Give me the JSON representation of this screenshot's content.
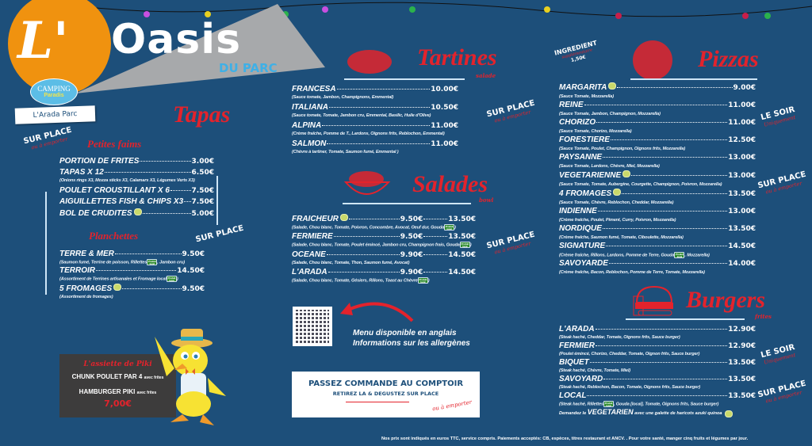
{
  "brand": {
    "name_l": "L'",
    "name": "Oasis",
    "sub": "DU PARC",
    "camping": "CAMPING",
    "paradis": "Paradis",
    "place": "L'Arada Parc"
  },
  "colors": {
    "background": "#1d4f7a",
    "accent_red": "#e3232c",
    "logo_orange": "#f0920f",
    "sail_grey": "#a7a9ab",
    "underline": "#cfe6f7"
  },
  "stamps": {
    "sur_place": "SUR PLACE",
    "emporter": "ou à emporter",
    "le_soir": "LE SOIR",
    "uniquement": "Uniquement"
  },
  "tapas": {
    "title": "Tapas",
    "petites_faims": "Petites faims",
    "items": [
      {
        "name": "PORTION DE FRITES",
        "price": "3.00€"
      },
      {
        "name": "TAPAS X 12",
        "price": "6.50€",
        "desc": "(Onions rings X3, Mozza sticks X3, Calamars X3, Légumes Verts X3)"
      },
      {
        "name": "POULET CROUSTILLANT X 6",
        "price": "7.50€"
      },
      {
        "name": "AIGUILLETTES FISH & CHIPS X3",
        "price": "7.50€"
      },
      {
        "name": "BOL DE CRUDITES",
        "veg": true,
        "price": "5.00€"
      }
    ],
    "planchettes": "Planchettes",
    "planchette_items": [
      {
        "name": "TERRE & MER",
        "price": "9.50€",
        "desc": "(Saumon fumé, Terrine de poisson, Rillettes",
        "local": true,
        "desc_after": ", Jambon cru)"
      },
      {
        "name": "TERROIR",
        "price": "14.50€",
        "desc": "(Assortiment de Terrines artisanales et Fromage local",
        "local": true,
        "desc_after": ")"
      },
      {
        "name": "5 FROMAGES",
        "veg": true,
        "price": "9.50€",
        "desc": "(Assortiment de fromages)"
      }
    ]
  },
  "tartines": {
    "title": "Tartines",
    "subtitle": "salade",
    "items": [
      {
        "name": "FRANCESA",
        "price": "10.00€",
        "desc": "(Sauce tomate, Jambon, Champignons, Emmental)"
      },
      {
        "name": "ITALIANA",
        "price": "10.50€",
        "desc": "(Sauce tomate, Tomate, Jambon cru, Emmental, Basilic, Huile d'Olive)"
      },
      {
        "name": "ALPINA",
        "price": "11.00€",
        "desc": "(Crème fraîche, Pomme de T., Lardons, Oignons frits, Reblochon, Emmental)"
      },
      {
        "name": "SALMON",
        "price": "11.00€",
        "desc": "(Chèvre à tartiner, Tomate, Saumon fumé, Emmental )"
      }
    ]
  },
  "salades": {
    "title": "Salades",
    "subtitle": "bowl",
    "items": [
      {
        "name": "FRAICHEUR",
        "veg": true,
        "price": "9.50€",
        "price2": "13.50€",
        "desc": "(Salade, Chou blanc, Tomate, Poivron, Concombre, Avocat, Oeuf dur, Gouda",
        "local": true,
        "desc_after": ")"
      },
      {
        "name": "FERMIERE",
        "price": "9.50€",
        "price2": "13.50€",
        "desc": "(Salade, Chou blanc, Tomate, Poulet émincé, Jambon cru, Champignon frais, Gouda",
        "local": true,
        "desc_after": ")"
      },
      {
        "name": "OCEANE",
        "price": "9.90€",
        "price2": "14.50€",
        "desc": "(Salade, Chou blanc, Tomate, Thon, Saumon fumé, Avocat)"
      },
      {
        "name": "L'ARADA",
        "price": "9.90€",
        "price2": "14.50€",
        "desc": "(Salade, Chou blanc, Tomate, Gésiers, Rillons, Toast au Chèvre",
        "local": true,
        "desc_after": ")"
      }
    ]
  },
  "local_badge": "Produit local",
  "qr": {
    "line1": "Menu disponible en anglais",
    "line2": "Informations sur les allergènes"
  },
  "order": {
    "line1": "PASSEZ COMMANDE AU COMPTOIR",
    "line2": "RETIREZ LA & DEGUSTEZ SUR PLACE",
    "line3": "ou à emporter"
  },
  "kids": {
    "title": "L'assiette de Piki",
    "item1": "CHUNK POULET  PAR 4",
    "item1_suffix": "avec frites",
    "item2": "HAMBURGER PIKI",
    "item2_suffix": "avec frites",
    "price": "7,00€"
  },
  "pizzas": {
    "title": "Pizzas",
    "supplement": {
      "label": "INGREDIENT",
      "sub": "supplémentaire",
      "price": "1,50€"
    },
    "items": [
      {
        "name": "MARGARITA",
        "veg": true,
        "price": "9.00€",
        "desc": "(Sauce Tomate, Mozzarella)"
      },
      {
        "name": "REINE",
        "price": "11.00€",
        "desc": "(Sauce Tomate, Jambon, Champignon, Mozzarella)"
      },
      {
        "name": "CHORIZO",
        "price": "11.00€",
        "desc": "(Sauce Tomate, Chorizo, Mozzarella)"
      },
      {
        "name": "FORESTIERE",
        "price": "12.50€",
        "desc": "(Sauce Tomate, Poulet, Champignon, Oignons frits, Mozzarella)"
      },
      {
        "name": "PAYSANNE",
        "price": "13.00€",
        "desc": "(Sauce Tomate, Lardons, Chèvre, Miel, Mozzarella)"
      },
      {
        "name": "VEGETARIENNE",
        "veg": true,
        "price": "13.00€",
        "desc": "(Sauce Tomate, Tomate, Aubergine, Courgette, Champignon, Poivron, Mozzarella)"
      },
      {
        "name": "4 FROMAGES",
        "veg": true,
        "price": "13.50€",
        "desc": "(Sauce Tomate, Chèvre, Reblochon, Cheddar, Mozzarella)"
      },
      {
        "name": "INDIENNE",
        "price": "13.00€",
        "desc": "(Crème fraîche, Poulet, Piment, Curry, Poivron, Mozzarella)"
      },
      {
        "name": "NORDIQUE",
        "price": "13.50€",
        "desc": "(Crème fraîche, Saumon fumé, Tomate, Ciboulette, Mozzarella)"
      },
      {
        "name": "SIGNATURE",
        "price": "14.50€",
        "desc": "(Crème fraîche, Rillons, Lardons, Pomme de Terre, Gouda",
        "local": true,
        "desc_after": ", Mozzarella)"
      },
      {
        "name": "SAVOYARDE",
        "price": "14.00€",
        "desc": "(Crème fraîche, Bacon, Reblochon, Pomme de Terre, Tomate, Mozzarella)"
      }
    ]
  },
  "burgers": {
    "title": "Burgers",
    "subtitle": "frites",
    "items": [
      {
        "name": "L'ARADA",
        "price": "12.90€",
        "desc": "(Steak haché, Cheddar, Tomate, Oignons frits, Sauce burger)"
      },
      {
        "name": "FERMIER",
        "price": "12.90€",
        "desc": "(Poulet émincé, Chorizo, Cheddar, Tomate, Oignon frits, Sauce burger)"
      },
      {
        "name": "BIQUET",
        "price": "13.50€",
        "desc": "(Steak haché, Chèvre, Tomate, Miel)"
      },
      {
        "name": "SAVOYARD",
        "price": "13.50€",
        "desc": "(Steak haché, Reblochon, Bacon, Tomate, Oignons frits, Sauce burger)"
      },
      {
        "name": "LOCAL",
        "price": "13.50€",
        "desc": "(Steak haché, Rillettes",
        "local": true,
        "desc_after": ", Gouda [local], Tomate, Oignons frits, Sauce burger)"
      }
    ],
    "veg_note_pre": "Demandez le",
    "veg_note_word": "VEGETARIEN",
    "veg_note_post": "avec une galette de haricots azuki quinoa"
  },
  "footer": "Nos prix sont indiqués en euros TTC, service compris. Paiements acceptés: CB, espèces, titres restaurant et ANCV. . Pour votre santé, manger cinq fruits et légumes par jour."
}
